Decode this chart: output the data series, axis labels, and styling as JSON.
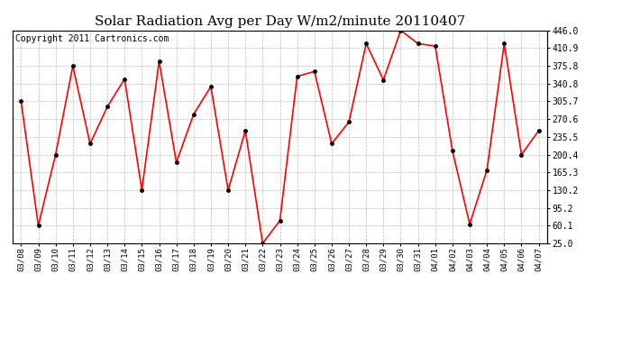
{
  "title": "Solar Radiation Avg per Day W/m2/minute 20110407",
  "copyright": "Copyright 2011 Cartronics.com",
  "dates": [
    "03/08",
    "03/09",
    "03/10",
    "03/11",
    "03/12",
    "03/13",
    "03/14",
    "03/15",
    "03/16",
    "03/17",
    "03/18",
    "03/19",
    "03/20",
    "03/21",
    "03/22",
    "03/23",
    "03/24",
    "03/25",
    "03/26",
    "03/27",
    "03/28",
    "03/29",
    "03/30",
    "03/31",
    "04/01",
    "04/02",
    "04/03",
    "04/04",
    "04/05",
    "04/06",
    "04/07"
  ],
  "values": [
    305.7,
    60.1,
    200.4,
    375.8,
    222.0,
    295.0,
    350.0,
    130.2,
    385.0,
    185.0,
    280.0,
    335.0,
    130.2,
    248.0,
    25.0,
    70.0,
    355.0,
    365.0,
    222.0,
    265.0,
    420.0,
    348.0,
    446.0,
    420.0,
    415.0,
    208.0,
    63.0,
    170.0,
    420.0,
    200.4,
    248.0
  ],
  "line_color": "#ff0000",
  "marker_color": "#000000",
  "background_color": "#ffffff",
  "grid_color": "#bbbbbb",
  "ylim": [
    25.0,
    446.0
  ],
  "yticks": [
    25.0,
    60.1,
    95.2,
    130.2,
    165.3,
    200.4,
    235.5,
    270.6,
    305.7,
    340.8,
    375.8,
    410.9,
    446.0
  ],
  "title_fontsize": 11,
  "copyright_fontsize": 7
}
